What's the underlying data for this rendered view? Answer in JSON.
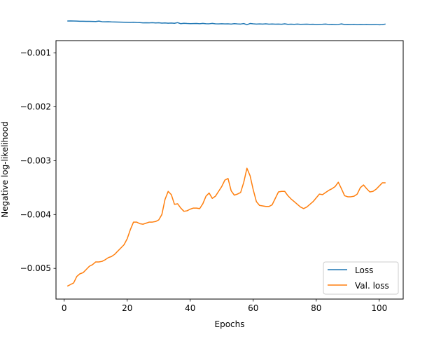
{
  "chart_data": {
    "type": "line",
    "title": "",
    "xlabel": "Epochs",
    "ylabel": "Negative log-likelihood",
    "xlim": [
      -2.6,
      107.6
    ],
    "ylim": [
      -0.00557,
      -0.00077
    ],
    "xticks": [
      0,
      20,
      40,
      60,
      80,
      100
    ],
    "xtick_labels": [
      "0",
      "20",
      "40",
      "60",
      "80",
      "100"
    ],
    "yticks": [
      -0.001,
      -0.002,
      -0.003,
      -0.004,
      -0.005
    ],
    "ytick_labels": [
      "−0.001",
      "−0.002",
      "−0.003",
      "−0.004",
      "−0.005"
    ],
    "grid": false,
    "legend_position": "lower right",
    "series": [
      {
        "name": "Loss",
        "color": "#1f77b4",
        "x": [
          1,
          2,
          3,
          4,
          5,
          6,
          7,
          8,
          9,
          10,
          11,
          12,
          13,
          14,
          15,
          16,
          17,
          18,
          19,
          20,
          21,
          22,
          23,
          24,
          25,
          26,
          27,
          28,
          29,
          30,
          31,
          32,
          33,
          34,
          35,
          36,
          37,
          38,
          39,
          40,
          41,
          42,
          43,
          44,
          45,
          46,
          47,
          48,
          49,
          50,
          51,
          52,
          53,
          54,
          55,
          56,
          57,
          58,
          59,
          60,
          61,
          62,
          63,
          64,
          65,
          66,
          67,
          68,
          69,
          70,
          71,
          72,
          73,
          74,
          75,
          76,
          77,
          78,
          79,
          80,
          81,
          82,
          83,
          84,
          85,
          86,
          87,
          88,
          89,
          90,
          91,
          92,
          93,
          94,
          95,
          96,
          97,
          98,
          99,
          100,
          101,
          102
        ],
        "values": [
          -0.000405,
          -0.000404,
          -0.000406,
          -0.000408,
          -0.00041,
          -0.000411,
          -0.000413,
          -0.000413,
          -0.000414,
          -0.000416,
          -0.000408,
          -0.000418,
          -0.00042,
          -0.000419,
          -0.000422,
          -0.000423,
          -0.000425,
          -0.000427,
          -0.000428,
          -0.00043,
          -0.000431,
          -0.000428,
          -0.000433,
          -0.000435,
          -0.00044,
          -0.000438,
          -0.00044,
          -0.000436,
          -0.000442,
          -0.000438,
          -0.000445,
          -0.000441,
          -0.000446,
          -0.000443,
          -0.000448,
          -0.000436,
          -0.000455,
          -0.000448,
          -0.000452,
          -0.000454,
          -0.000453,
          -0.000452,
          -0.000456,
          -0.000449,
          -0.000456,
          -0.000457,
          -0.00045,
          -0.000458,
          -0.000459,
          -0.000456,
          -0.00046,
          -0.000458,
          -0.000462,
          -0.000455,
          -0.00046,
          -0.000462,
          -0.000453,
          -0.000475,
          -0.000452,
          -0.000458,
          -0.000462,
          -0.00046,
          -0.000463,
          -0.000458,
          -0.000464,
          -0.000461,
          -0.000465,
          -0.000462,
          -0.000466,
          -0.000458,
          -0.000467,
          -0.000464,
          -0.000468,
          -0.000463,
          -0.000467,
          -0.000466,
          -0.000464,
          -0.000468,
          -0.000466,
          -0.00047,
          -0.000467,
          -0.000466,
          -0.000462,
          -0.00047,
          -0.000468,
          -0.000472,
          -0.00047,
          -0.00046,
          -0.000471,
          -0.000469,
          -0.000471,
          -0.000468,
          -0.000474,
          -0.00047,
          -0.000472,
          -0.000469,
          -0.000474,
          -0.000472,
          -0.00047,
          -0.000475,
          -0.000473,
          -0.000462
        ]
      },
      {
        "name": "Val. loss",
        "color": "#ff7f0e",
        "x": [
          1,
          2,
          3,
          4,
          5,
          6,
          7,
          8,
          9,
          10,
          11,
          12,
          13,
          14,
          15,
          16,
          17,
          18,
          19,
          20,
          21,
          22,
          23,
          24,
          25,
          26,
          27,
          28,
          29,
          30,
          31,
          32,
          33,
          34,
          35,
          36,
          37,
          38,
          39,
          40,
          41,
          42,
          43,
          44,
          45,
          46,
          47,
          48,
          49,
          50,
          51,
          52,
          53,
          54,
          55,
          56,
          57,
          58,
          59,
          60,
          61,
          62,
          63,
          64,
          65,
          66,
          67,
          68,
          69,
          70,
          71,
          72,
          73,
          74,
          75,
          76,
          77,
          78,
          79,
          80,
          81,
          82,
          83,
          84,
          85,
          86,
          87,
          88,
          89,
          90,
          91,
          92,
          93,
          94,
          95,
          96,
          97,
          98,
          99,
          100,
          101,
          102
        ],
        "values": [
          -0.00533,
          -0.0053,
          -0.00527,
          -0.00515,
          -0.0051,
          -0.00508,
          -0.00502,
          -0.00496,
          -0.00493,
          -0.00488,
          -0.00488,
          -0.00487,
          -0.00484,
          -0.0048,
          -0.00478,
          -0.00474,
          -0.00468,
          -0.00462,
          -0.00456,
          -0.00445,
          -0.00428,
          -0.00414,
          -0.00414,
          -0.00417,
          -0.00418,
          -0.00416,
          -0.00414,
          -0.00414,
          -0.00413,
          -0.0041,
          -0.004,
          -0.00372,
          -0.00357,
          -0.00363,
          -0.00381,
          -0.0038,
          -0.00388,
          -0.00394,
          -0.00393,
          -0.0039,
          -0.00388,
          -0.00388,
          -0.00389,
          -0.0038,
          -0.00366,
          -0.0036,
          -0.0037,
          -0.00366,
          -0.00357,
          -0.00348,
          -0.00336,
          -0.00333,
          -0.00356,
          -0.00364,
          -0.00362,
          -0.00359,
          -0.0034,
          -0.00314,
          -0.00328,
          -0.00354,
          -0.00376,
          -0.00383,
          -0.00384,
          -0.00385,
          -0.00385,
          -0.00382,
          -0.0037,
          -0.00358,
          -0.00357,
          -0.00357,
          -0.00365,
          -0.00371,
          -0.00376,
          -0.00381,
          -0.00386,
          -0.00389,
          -0.00386,
          -0.00381,
          -0.00376,
          -0.00369,
          -0.00362,
          -0.00363,
          -0.00359,
          -0.00355,
          -0.00352,
          -0.00348,
          -0.0034,
          -0.00352,
          -0.00365,
          -0.00367,
          -0.00367,
          -0.00366,
          -0.00362,
          -0.0035,
          -0.00345,
          -0.00352,
          -0.00358,
          -0.00357,
          -0.00353,
          -0.00347,
          -0.00341,
          -0.00341
        ]
      }
    ]
  }
}
